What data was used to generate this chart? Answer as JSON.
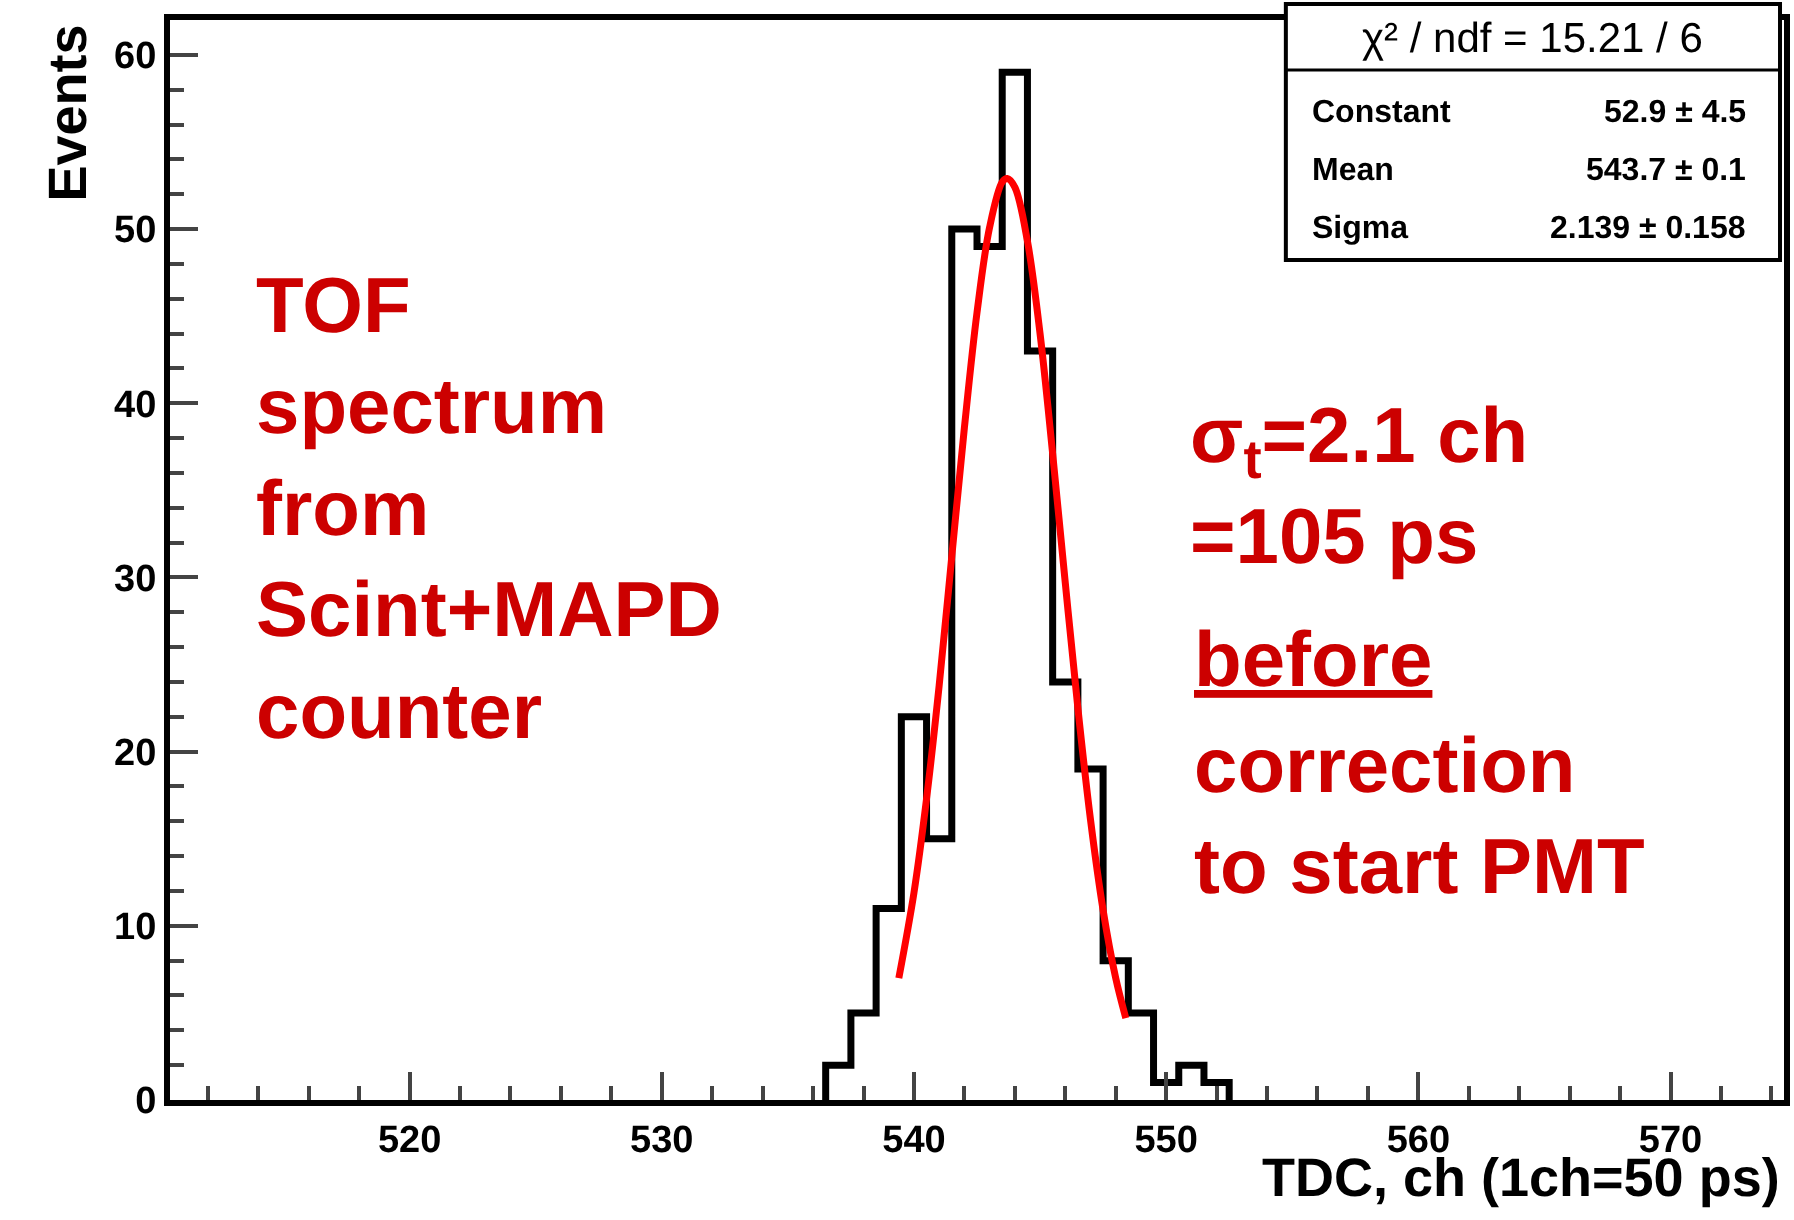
{
  "chart_data": {
    "type": "histogram",
    "xlabel": "TDC, ch (1ch=50 ps)",
    "ylabel": "Events",
    "xlim": [
      510.5,
      574.5
    ],
    "ylim": [
      0,
      62
    ],
    "xticks": [
      520,
      530,
      540,
      550,
      560,
      570
    ],
    "yticks": [
      0,
      10,
      20,
      30,
      40,
      50,
      60
    ],
    "series": [
      {
        "color": "#000000",
        "bins": [
          536.5,
          537.5,
          538.5,
          539.5,
          540.5,
          541.5,
          542.5,
          543.5,
          544.5,
          545.5,
          546.5,
          547.5,
          548.5,
          549.5,
          550.5,
          551.5,
          552.5
        ],
        "values": [
          2,
          5,
          11,
          22,
          15,
          50,
          49,
          59,
          43,
          24,
          19,
          8,
          5,
          1,
          2,
          1
        ]
      },
      {
        "type": "line",
        "color": "#ff0000",
        "x": [
          539.4,
          540,
          540.5,
          541,
          541.5,
          542,
          542.5,
          543,
          543.5,
          543.7,
          544,
          544.5,
          545,
          545.5,
          546,
          546.5,
          547,
          547.5,
          548,
          548.4
        ],
        "values": [
          7.0,
          11.9,
          17.3,
          23.8,
          31.2,
          38.6,
          45.2,
          50.1,
          52.7,
          52.9,
          52.4,
          49.3,
          44.0,
          37.1,
          29.7,
          22.5,
          16.1,
          10.9,
          7.0,
          4.7
        ]
      }
    ],
    "annotations": [
      "TOF\nspectrum\nfrom\nScint+MAPD\ncounter",
      "σ$_{t}$=2.1 ch\n=105 ps",
      "before",
      "correction\nto start PMT",
      "χ² / ndf = 15.21 / 6",
      "Constant",
      "52.9 ± 4.5",
      "Mean",
      "543.7 ± 0.1",
      "Sigma",
      "2.139 ± 0.158"
    ]
  }
}
